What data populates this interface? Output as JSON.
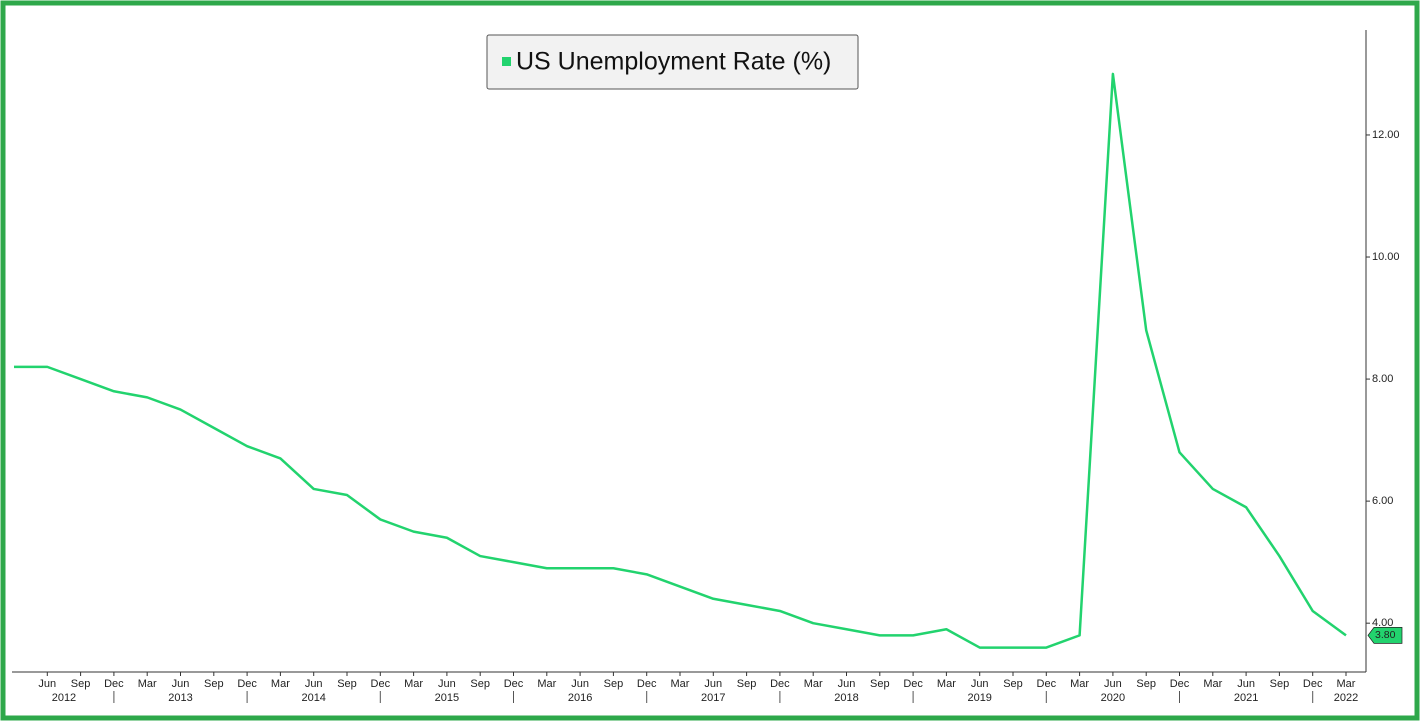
{
  "chart_data": {
    "type": "line",
    "legend": "top-center",
    "categories": [
      null,
      "Jun",
      "Sep",
      "Dec",
      "Mar",
      "Jun",
      "Sep",
      "Dec",
      "Mar",
      "Jun",
      "Sep",
      "Dec",
      "Mar",
      "Jun",
      "Sep",
      "Dec",
      "Mar",
      "Jun",
      "Sep",
      "Dec",
      "Mar",
      "Jun",
      "Sep",
      "Dec",
      "Mar",
      "Jun",
      "Sep",
      "Dec",
      "Mar",
      "Jun",
      "Sep",
      "Dec",
      "Mar",
      "Jun",
      "Sep",
      "Dec",
      "Mar",
      "Jun",
      "Sep",
      "Dec",
      "Mar"
    ],
    "years": [
      "2012",
      "2013",
      "2014",
      "2015",
      "2016",
      "2017",
      "2018",
      "2019",
      "2020",
      "2021",
      "2022"
    ],
    "series": [
      {
        "name": "US Unemployment Rate (%)",
        "color": "#22d36e",
        "values": [
          8.2,
          8.2,
          8.0,
          7.8,
          7.7,
          7.5,
          7.2,
          6.9,
          6.7,
          6.2,
          6.1,
          5.7,
          5.5,
          5.4,
          5.1,
          5.0,
          4.9,
          4.9,
          4.9,
          4.8,
          4.6,
          4.4,
          4.3,
          4.2,
          4.0,
          3.9,
          3.8,
          3.8,
          3.9,
          3.6,
          3.6,
          3.6,
          3.8,
          13.0,
          8.8,
          6.8,
          6.2,
          5.9,
          5.1,
          4.2,
          3.8
        ],
        "value_labels": [
          null,
          null,
          null,
          null,
          null,
          null,
          null,
          null,
          null,
          null,
          null,
          null,
          null,
          null,
          null,
          null,
          null,
          null,
          null,
          null,
          null,
          null,
          null,
          null,
          null,
          null,
          null,
          null,
          null,
          null,
          null,
          null,
          null,
          null,
          null,
          null,
          null,
          null,
          null,
          null,
          "3.80"
        ]
      }
    ],
    "ylim": [
      3.2,
      13.72
    ],
    "yticks": [
      {
        "value": 4,
        "label": "4.00"
      },
      {
        "value": 6,
        "label": "6.00"
      },
      {
        "value": 8,
        "label": "8.00"
      },
      {
        "value": 10,
        "label": "10.00"
      },
      {
        "value": 12,
        "label": "12.00"
      }
    ]
  }
}
